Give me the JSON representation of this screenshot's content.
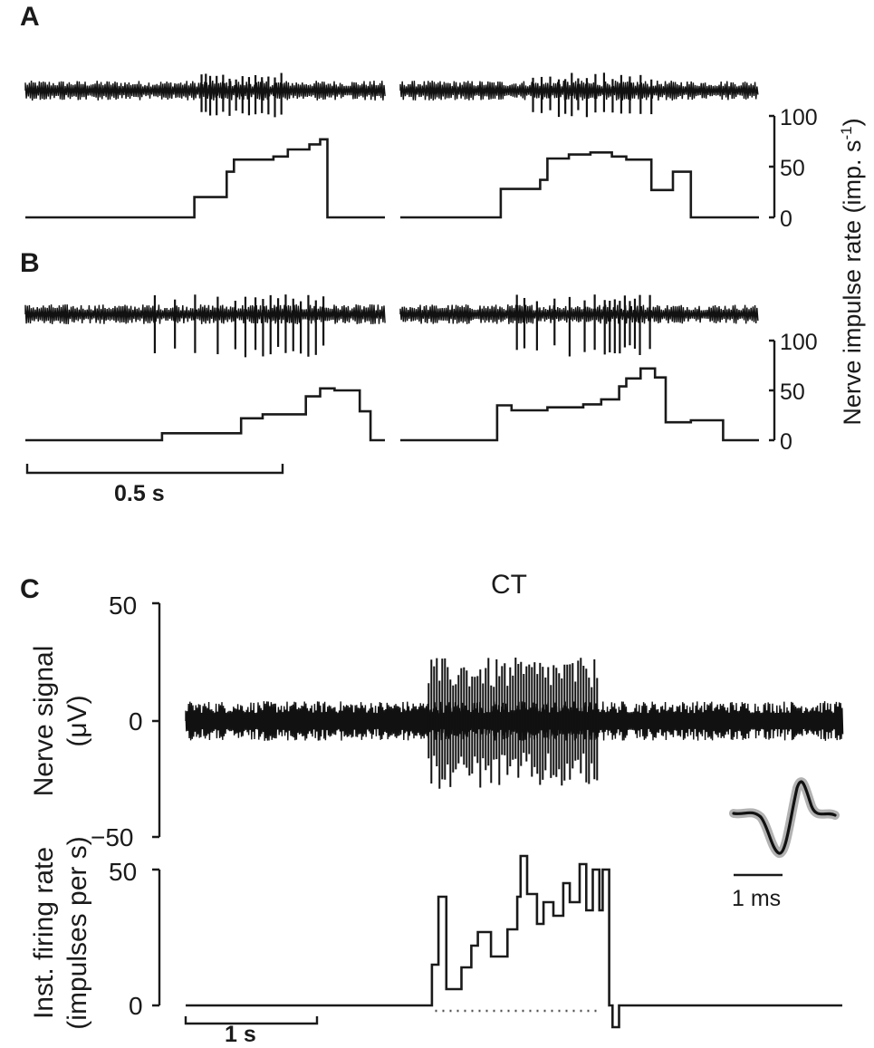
{
  "chart_data": [
    {
      "panel": "A",
      "type": "line",
      "ylabel": "Nerve impulse rate (imp. s-1)",
      "y_ticks": [
        "0",
        "50",
        "100"
      ],
      "ylim": [
        0,
        100
      ],
      "traces": [
        {
          "steps": [
            [
              0,
              0
            ],
            [
              0.47,
              0
            ],
            [
              0.47,
              20
            ],
            [
              0.56,
              20
            ],
            [
              0.56,
              45
            ],
            [
              0.58,
              45
            ],
            [
              0.58,
              57
            ],
            [
              0.69,
              57
            ],
            [
              0.69,
              60
            ],
            [
              0.73,
              60
            ],
            [
              0.73,
              67
            ],
            [
              0.79,
              67
            ],
            [
              0.79,
              72
            ],
            [
              0.82,
              72
            ],
            [
              0.82,
              77
            ],
            [
              0.84,
              77
            ],
            [
              0.84,
              0
            ],
            [
              1,
              0
            ]
          ],
          "spikes_x": [
            0.45,
            0.47,
            0.49,
            0.52,
            0.55,
            0.58,
            0.61,
            0.64,
            0.67,
            0.7,
            0.73,
            0.76,
            0.79,
            0.82
          ]
        },
        {
          "steps": [
            [
              0,
              0
            ],
            [
              0.28,
              0
            ],
            [
              0.28,
              28
            ],
            [
              0.39,
              28
            ],
            [
              0.39,
              37
            ],
            [
              0.41,
              37
            ],
            [
              0.41,
              58
            ],
            [
              0.47,
              58
            ],
            [
              0.47,
              62
            ],
            [
              0.53,
              62
            ],
            [
              0.53,
              64
            ],
            [
              0.59,
              64
            ],
            [
              0.59,
              60
            ],
            [
              0.63,
              60
            ],
            [
              0.63,
              57
            ],
            [
              0.7,
              57
            ],
            [
              0.7,
              27
            ],
            [
              0.76,
              27
            ],
            [
              0.76,
              45
            ],
            [
              0.81,
              45
            ],
            [
              0.81,
              0
            ],
            [
              1,
              0
            ]
          ],
          "spikes_x": [
            0.25,
            0.29,
            0.33,
            0.37,
            0.4,
            0.43,
            0.46,
            0.5,
            0.54,
            0.58,
            0.62,
            0.66,
            0.7,
            0.75,
            0.8
          ]
        }
      ]
    },
    {
      "panel": "B",
      "type": "line",
      "y_ticks": [
        "0",
        "50",
        "100"
      ],
      "ylim": [
        0,
        100
      ],
      "traces": [
        {
          "steps": [
            [
              0,
              0
            ],
            [
              0.38,
              0
            ],
            [
              0.38,
              7
            ],
            [
              0.6,
              7
            ],
            [
              0.6,
              22
            ],
            [
              0.66,
              22
            ],
            [
              0.66,
              26
            ],
            [
              0.78,
              26
            ],
            [
              0.78,
              44
            ],
            [
              0.82,
              44
            ],
            [
              0.82,
              52
            ],
            [
              0.86,
              52
            ],
            [
              0.86,
              50
            ],
            [
              0.93,
              50
            ],
            [
              0.93,
              29
            ],
            [
              0.96,
              29
            ],
            [
              0.96,
              0
            ],
            [
              1,
              0
            ]
          ],
          "spikes_x": [
            0.3,
            0.38,
            0.46,
            0.55,
            0.62,
            0.66,
            0.7,
            0.73,
            0.76,
            0.79,
            0.82,
            0.85,
            0.88,
            0.91,
            0.94,
            0.97
          ]
        },
        {
          "steps": [
            [
              0,
              0
            ],
            [
              0.27,
              0
            ],
            [
              0.27,
              35
            ],
            [
              0.31,
              35
            ],
            [
              0.31,
              30
            ],
            [
              0.41,
              30
            ],
            [
              0.41,
              33
            ],
            [
              0.51,
              33
            ],
            [
              0.51,
              36
            ],
            [
              0.56,
              36
            ],
            [
              0.56,
              41
            ],
            [
              0.61,
              41
            ],
            [
              0.61,
              54
            ],
            [
              0.63,
              54
            ],
            [
              0.63,
              62
            ],
            [
              0.67,
              62
            ],
            [
              0.67,
              72
            ],
            [
              0.71,
              72
            ],
            [
              0.71,
              63
            ],
            [
              0.74,
              63
            ],
            [
              0.74,
              18
            ],
            [
              0.81,
              18
            ],
            [
              0.81,
              20
            ],
            [
              0.9,
              20
            ],
            [
              0.9,
              0
            ],
            [
              1,
              0
            ]
          ],
          "spikes_x": [
            0.25,
            0.28,
            0.33,
            0.4,
            0.46,
            0.52,
            0.56,
            0.6,
            0.62,
            0.64,
            0.66,
            0.68,
            0.7,
            0.72,
            0.74,
            0.78
          ]
        }
      ]
    },
    {
      "panel": "C",
      "type": "line",
      "title": "CT",
      "signal": {
        "ylabel": "Nerve signal (μV)",
        "y_ticks": [
          "50",
          "0",
          "−50"
        ],
        "ylim": [
          -50,
          50
        ],
        "burst_x_range": [
          0.37,
          0.63
        ]
      },
      "rate": {
        "ylabel": "Inst. firing rate (impulses per s)",
        "y_ticks": [
          "50",
          "0"
        ],
        "ylim": [
          0,
          50
        ],
        "steps": [
          [
            0,
            0
          ],
          [
            0.375,
            0
          ],
          [
            0.375,
            15
          ],
          [
            0.385,
            15
          ],
          [
            0.385,
            40
          ],
          [
            0.397,
            40
          ],
          [
            0.397,
            6
          ],
          [
            0.42,
            6
          ],
          [
            0.42,
            14
          ],
          [
            0.435,
            14
          ],
          [
            0.435,
            22
          ],
          [
            0.445,
            22
          ],
          [
            0.445,
            27
          ],
          [
            0.465,
            27
          ],
          [
            0.465,
            18
          ],
          [
            0.49,
            18
          ],
          [
            0.49,
            28
          ],
          [
            0.505,
            28
          ],
          [
            0.505,
            40
          ],
          [
            0.51,
            40
          ],
          [
            0.51,
            55
          ],
          [
            0.52,
            55
          ],
          [
            0.52,
            41
          ],
          [
            0.535,
            41
          ],
          [
            0.535,
            30
          ],
          [
            0.545,
            30
          ],
          [
            0.545,
            38
          ],
          [
            0.56,
            38
          ],
          [
            0.56,
            33
          ],
          [
            0.575,
            33
          ],
          [
            0.575,
            45
          ],
          [
            0.585,
            45
          ],
          [
            0.585,
            38
          ],
          [
            0.6,
            38
          ],
          [
            0.6,
            52
          ],
          [
            0.61,
            52
          ],
          [
            0.61,
            35
          ],
          [
            0.62,
            35
          ],
          [
            0.62,
            50
          ],
          [
            0.63,
            50
          ],
          [
            0.63,
            35
          ],
          [
            0.635,
            35
          ],
          [
            0.635,
            50
          ],
          [
            0.645,
            50
          ],
          [
            0.645,
            0
          ],
          [
            0.65,
            0
          ],
          [
            0.65,
            -8
          ],
          [
            0.66,
            -8
          ],
          [
            0.66,
            0
          ],
          [
            1,
            0
          ]
        ],
        "dotted_x_range": [
          0.38,
          0.63
        ]
      }
    }
  ],
  "labels": {
    "panel_a": "A",
    "panel_b": "B",
    "panel_c": "C",
    "ab_ylabel": "Nerve impulse rate (imp. s",
    "ab_ylabel_sup": "-1",
    "ab_ylabel_close": ")",
    "tick_100": "100",
    "tick_50": "50",
    "tick_0": "0",
    "scale_ab": "0.5 s",
    "c_title": "CT",
    "c_sig_label_1": "Nerve signal",
    "c_sig_label_2": "(μV)",
    "c_rate_label_1": "Inst. firing rate",
    "c_rate_label_2": "(impulses per s)",
    "c_tick_50": "50",
    "c_tick_0": "0",
    "c_tick_m50": "−50",
    "c_rate_50": "50",
    "c_rate_0": "0",
    "scale_c": "1 s",
    "scale_inset": "1 ms"
  }
}
